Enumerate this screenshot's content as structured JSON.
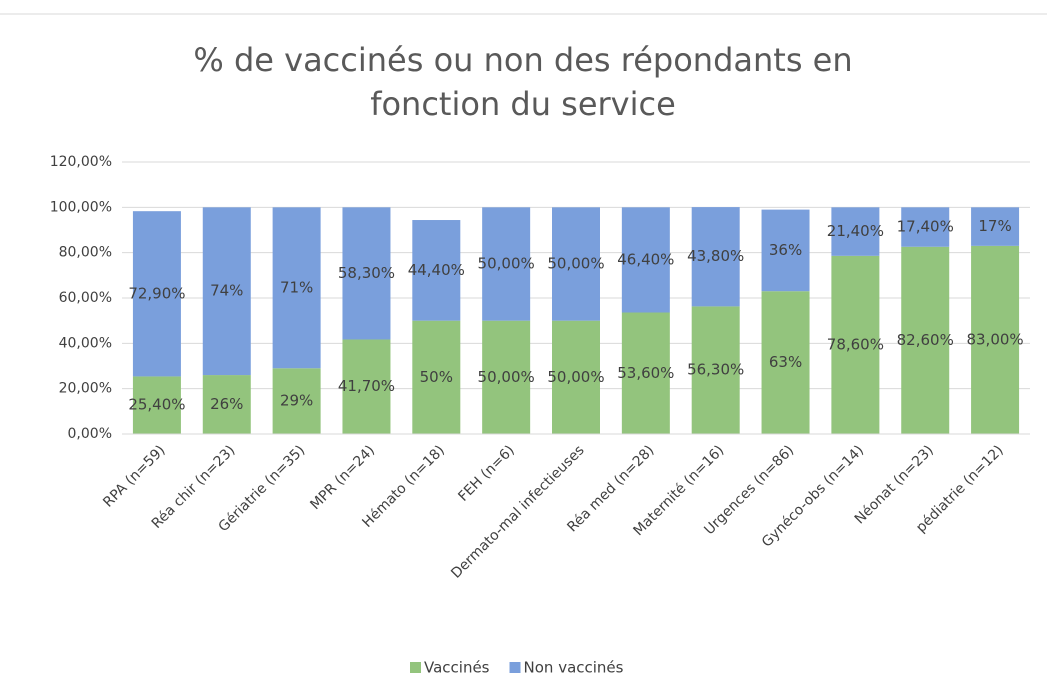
{
  "chart_data": {
    "type": "stacked_bar",
    "title": "% de vaccinés ou non des répondants en fonction du service",
    "categories": [
      "RPA (n=59)",
      "Réa chir (n=23)",
      "Gériatrie (n=35)",
      "MPR (n=24)",
      "Hémato (n=18)",
      "FEH (n=6)",
      "Dermato-mal infectieuses",
      "Réa med (n=28)",
      "Maternité (n=16)",
      "Urgences (n=86)",
      "Gynéco-obs (n=14)",
      "Néonat (n=23)",
      "pédiatrie (n=12)"
    ],
    "series": [
      {
        "name": "Vaccinés",
        "color": "#93c47d",
        "values": [
          25.4,
          26,
          29,
          41.7,
          50,
          50,
          50,
          53.6,
          56.3,
          63,
          78.6,
          82.6,
          83
        ],
        "value_labels": [
          "25,40%",
          "26%",
          "29%",
          "41,70%",
          "50%",
          "50,00%",
          "50,00%",
          "53,60%",
          "56,30%",
          "63%",
          "78,60%",
          "82,60%",
          "83,00%"
        ]
      },
      {
        "name": "Non vaccinés",
        "color": "#7a9fdc",
        "values": [
          72.9,
          74,
          71,
          58.3,
          44.4,
          50,
          50,
          46.4,
          43.8,
          36,
          21.4,
          17.4,
          17
        ],
        "value_labels": [
          "72,90%",
          "74%",
          "71%",
          "58,30%",
          "44,40%",
          "50,00%",
          "50,00%",
          "46,40%",
          "43,80%",
          "36%",
          "21,40%",
          "17,40%",
          "17%"
        ]
      }
    ],
    "ylim": [
      0,
      120
    ],
    "yticks": [
      {
        "value": 0,
        "label": "0,00%"
      },
      {
        "value": 20,
        "label": "20,00%"
      },
      {
        "value": 40,
        "label": "40,00%"
      },
      {
        "value": 60,
        "label": "60,00%"
      },
      {
        "value": 80,
        "label": "80,00%"
      },
      {
        "value": 100,
        "label": "100,00%"
      },
      {
        "value": 120,
        "label": "120,00%"
      }
    ],
    "grid": true,
    "legend": "bottom"
  }
}
